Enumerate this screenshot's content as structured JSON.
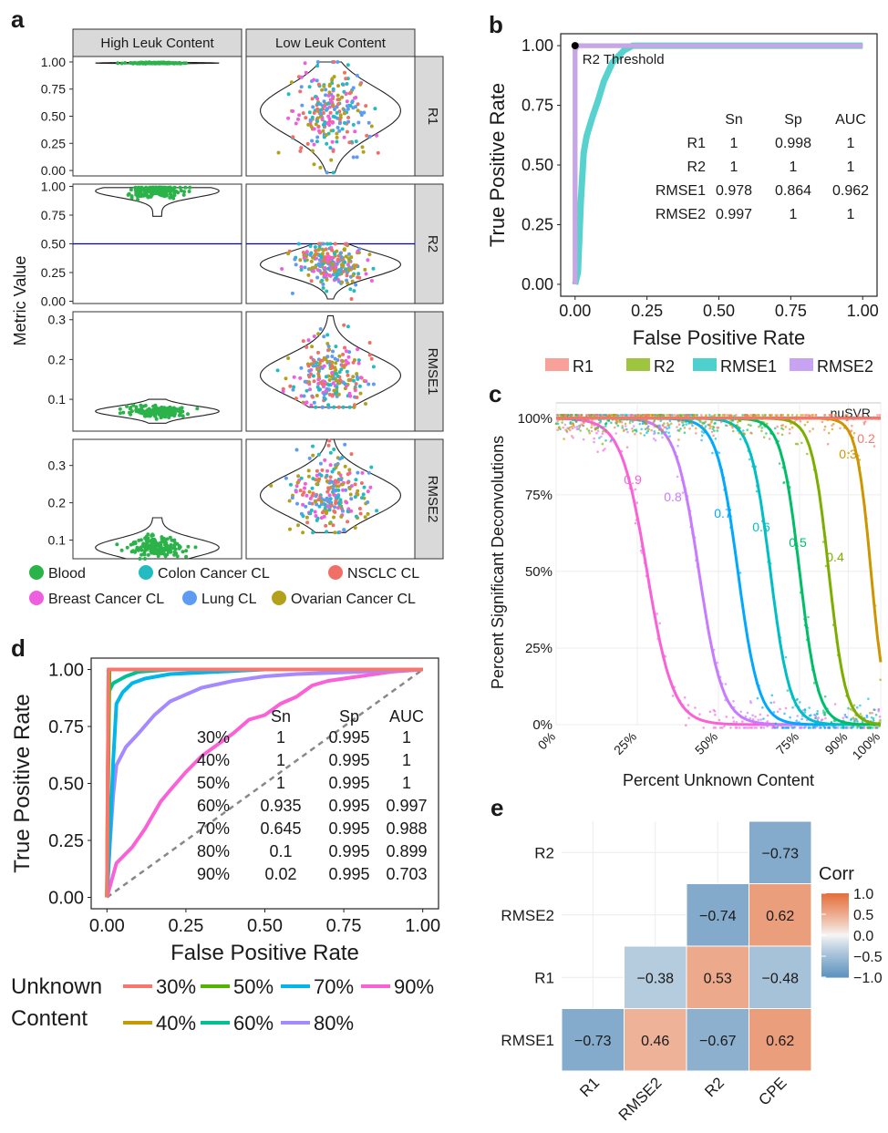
{
  "panels": {
    "a": "a",
    "b": "b",
    "c": "c",
    "d": "d",
    "e": "e"
  },
  "colors": {
    "blood": "#2bb34a",
    "colon": "#22bcc0",
    "nsclc": "#f07068",
    "breast": "#f05ee0",
    "lung": "#5e9cf2",
    "ovarian": "#b3a11c",
    "R1": "#f8a09a",
    "R2": "#9dc53f",
    "RMSE1": "#4ed0cc",
    "RMSE2": "#c8a3f3",
    "u30": "#f8766d",
    "u40": "#c49a00",
    "u50": "#53b400",
    "u60": "#00c094",
    "u70": "#00b6eb",
    "u80": "#a58aff",
    "u90": "#fb61d7",
    "threshold": "#0000cc"
  },
  "chart_data": [
    {
      "panel": "a",
      "type": "violin",
      "ylabel": "Metric Value",
      "columns": [
        "High Leuk Content",
        "Low Leuk Content"
      ],
      "rows": [
        {
          "metric": "R1",
          "yticks": [
            "0.00",
            "0.25",
            "0.50",
            "0.75",
            "1.00"
          ],
          "ylim": [
            -0.05,
            1.05
          ],
          "high": {
            "median": 0.99,
            "min": 0.98,
            "max": 1.0
          },
          "low": {
            "median": 0.55,
            "min": -0.02,
            "max": 1.0
          }
        },
        {
          "metric": "R2",
          "yticks": [
            "0.00",
            "0.25",
            "0.50",
            "0.75",
            "1.00"
          ],
          "ylim": [
            -0.02,
            1.02
          ],
          "threshold": 0.5,
          "high": {
            "median": 0.96,
            "min": 0.74,
            "max": 0.99
          },
          "low": {
            "median": 0.32,
            "min": 0.02,
            "max": 0.5
          }
        },
        {
          "metric": "RMSE1",
          "yticks": [
            "0.1",
            "0.2",
            "0.3"
          ],
          "ylim": [
            0.02,
            0.32
          ],
          "high": {
            "median": 0.07,
            "min": 0.04,
            "max": 0.1
          },
          "low": {
            "median": 0.16,
            "min": 0.08,
            "max": 0.31
          }
        },
        {
          "metric": "RMSE2",
          "yticks": [
            "0.1",
            "0.2",
            "0.3"
          ],
          "ylim": [
            0.05,
            0.37
          ],
          "high": {
            "median": 0.08,
            "min": 0.05,
            "max": 0.16
          },
          "low": {
            "median": 0.22,
            "min": 0.12,
            "max": 0.37
          }
        }
      ],
      "legend": [
        "Blood",
        "Colon Cancer CL",
        "NSCLC CL",
        "Breast Cancer CL",
        "Lung CL",
        "Ovarian Cancer CL"
      ]
    },
    {
      "panel": "b",
      "type": "line",
      "xlabel": "False Positive Rate",
      "ylabel": "True Positive Rate",
      "xticks": [
        "0.00",
        "0.25",
        "0.50",
        "0.75",
        "1.00"
      ],
      "yticks": [
        "0.00",
        "0.25",
        "0.50",
        "0.75",
        "1.00"
      ],
      "annotation": "R2 Threshold",
      "series": [
        {
          "name": "R1",
          "x": [
            0,
            0,
            1
          ],
          "y": [
            0,
            1,
            1
          ]
        },
        {
          "name": "R2",
          "x": [
            0,
            0,
            1
          ],
          "y": [
            0,
            1,
            1
          ]
        },
        {
          "name": "RMSE1",
          "x": [
            0,
            0.01,
            0.02,
            0.03,
            0.04,
            0.06,
            0.08,
            0.1,
            0.13,
            0.17,
            0.2,
            1
          ],
          "y": [
            0,
            0.05,
            0.35,
            0.55,
            0.62,
            0.7,
            0.77,
            0.85,
            0.93,
            0.98,
            1,
            1
          ]
        },
        {
          "name": "RMSE2",
          "x": [
            0,
            0,
            0.01,
            1
          ],
          "y": [
            0,
            0.98,
            1,
            1
          ]
        }
      ],
      "table": {
        "header": [
          "",
          "Sn",
          "Sp",
          "AUC"
        ],
        "rows": [
          [
            "R1",
            "1",
            "0.998",
            "1"
          ],
          [
            "R2",
            "1",
            "1",
            "1"
          ],
          [
            "RMSE1",
            "0.978",
            "0.864",
            "0.962"
          ],
          [
            "RMSE2",
            "0.997",
            "1",
            "1"
          ]
        ]
      }
    },
    {
      "panel": "c",
      "type": "line",
      "xlabel": "Percent Unknown Content",
      "ylabel": "Percent Significant Deconvolutions",
      "xticks": [
        "0%",
        "25%",
        "50%",
        "75%",
        "90%",
        "100%"
      ],
      "yticks": [
        "0%",
        "25%",
        "50%",
        "75%",
        "100%"
      ],
      "reference": "nuSVR",
      "curves": [
        {
          "label": "0.9",
          "midpoint": 28,
          "width": 4.0
        },
        {
          "label": "0.8",
          "midpoint": 44,
          "width": 3.6
        },
        {
          "label": "0.7",
          "midpoint": 56,
          "width": 3.2
        },
        {
          "label": "0.6",
          "midpoint": 66,
          "width": 3.0
        },
        {
          "label": "0.5",
          "midpoint": 75,
          "width": 2.8
        },
        {
          "label": "0.4",
          "midpoint": 84,
          "width": 2.6
        },
        {
          "label": "0.3",
          "midpoint": 97,
          "width": 2.2
        },
        {
          "label": "0.2",
          "midpoint": 160,
          "width": 2.0
        }
      ]
    },
    {
      "panel": "d",
      "type": "line",
      "xlabel": "False Positive Rate",
      "ylabel": "True Positive Rate",
      "xticks": [
        "0.00",
        "0.25",
        "0.50",
        "0.75",
        "1.00"
      ],
      "yticks": [
        "0.00",
        "0.25",
        "0.50",
        "0.75",
        "1.00"
      ],
      "legend_title": [
        "Unknown",
        "Content"
      ],
      "series": [
        {
          "name": "30%",
          "x": [
            0,
            0.005,
            1
          ],
          "y": [
            0,
            1,
            1
          ]
        },
        {
          "name": "40%",
          "x": [
            0,
            0.005,
            1
          ],
          "y": [
            0,
            1,
            1
          ]
        },
        {
          "name": "50%",
          "x": [
            0,
            0.008,
            1
          ],
          "y": [
            0,
            1,
            1
          ]
        },
        {
          "name": "60%",
          "x": [
            0,
            0.005,
            0.02,
            0.06,
            0.1,
            0.2,
            1
          ],
          "y": [
            0,
            0.9,
            0.94,
            0.97,
            0.99,
            1,
            1
          ]
        },
        {
          "name": "70%",
          "x": [
            0,
            0.01,
            0.02,
            0.03,
            0.05,
            0.08,
            0.12,
            0.2,
            0.35,
            0.5,
            1
          ],
          "y": [
            0,
            0.28,
            0.6,
            0.85,
            0.9,
            0.94,
            0.96,
            0.98,
            0.99,
            1,
            1
          ]
        },
        {
          "name": "80%",
          "x": [
            0,
            0.01,
            0.02,
            0.03,
            0.06,
            0.1,
            0.15,
            0.2,
            0.3,
            0.4,
            0.5,
            0.6,
            0.8,
            1
          ],
          "y": [
            0,
            0.25,
            0.45,
            0.58,
            0.66,
            0.72,
            0.8,
            0.86,
            0.92,
            0.95,
            0.97,
            0.98,
            0.99,
            1
          ]
        },
        {
          "name": "90%",
          "x": [
            0,
            0.03,
            0.08,
            0.12,
            0.17,
            0.2,
            0.25,
            0.3,
            0.35,
            0.4,
            0.45,
            0.5,
            0.55,
            0.6,
            0.65,
            0.7,
            0.8,
            0.9,
            1
          ],
          "y": [
            0,
            0.15,
            0.22,
            0.3,
            0.42,
            0.47,
            0.55,
            0.62,
            0.67,
            0.72,
            0.78,
            0.8,
            0.85,
            0.88,
            0.93,
            0.95,
            0.97,
            0.99,
            1
          ]
        }
      ],
      "table": {
        "header": [
          "",
          "Sn",
          "Sp",
          "AUC"
        ],
        "rows": [
          [
            "30%",
            "1",
            "0.995",
            "1"
          ],
          [
            "40%",
            "1",
            "0.995",
            "1"
          ],
          [
            "50%",
            "1",
            "0.995",
            "1"
          ],
          [
            "60%",
            "0.935",
            "0.995",
            "0.997"
          ],
          [
            "70%",
            "0.645",
            "0.995",
            "0.988"
          ],
          [
            "80%",
            "0.1",
            "0.995",
            "0.899"
          ],
          [
            "90%",
            "0.02",
            "0.995",
            "0.703"
          ]
        ]
      }
    },
    {
      "panel": "e",
      "type": "heatmap",
      "legend_title": "Corr",
      "legend_ticks": [
        "1.0",
        "0.5",
        "0.0",
        "−0.5",
        "−1.0"
      ],
      "xcategories": [
        "R1",
        "RMSE2",
        "R2",
        "CPE"
      ],
      "ycategories": [
        "R2",
        "RMSE2",
        "R1",
        "RMSE1"
      ],
      "cells": [
        {
          "row": "R2",
          "col": "CPE",
          "value": -0.73,
          "label": "−0.73"
        },
        {
          "row": "RMSE2",
          "col": "R2",
          "value": -0.74,
          "label": "−0.74"
        },
        {
          "row": "RMSE2",
          "col": "CPE",
          "value": 0.62,
          "label": "0.62"
        },
        {
          "row": "R1",
          "col": "RMSE2",
          "value": -0.38,
          "label": "−0.38"
        },
        {
          "row": "R1",
          "col": "R2",
          "value": 0.53,
          "label": "0.53"
        },
        {
          "row": "R1",
          "col": "CPE",
          "value": -0.48,
          "label": "−0.48"
        },
        {
          "row": "RMSE1",
          "col": "R1",
          "value": -0.73,
          "label": "−0.73"
        },
        {
          "row": "RMSE1",
          "col": "RMSE2",
          "value": 0.46,
          "label": "0.46"
        },
        {
          "row": "RMSE1",
          "col": "R2",
          "value": -0.67,
          "label": "−0.67"
        },
        {
          "row": "RMSE1",
          "col": "CPE",
          "value": 0.62,
          "label": "0.62"
        }
      ]
    }
  ]
}
